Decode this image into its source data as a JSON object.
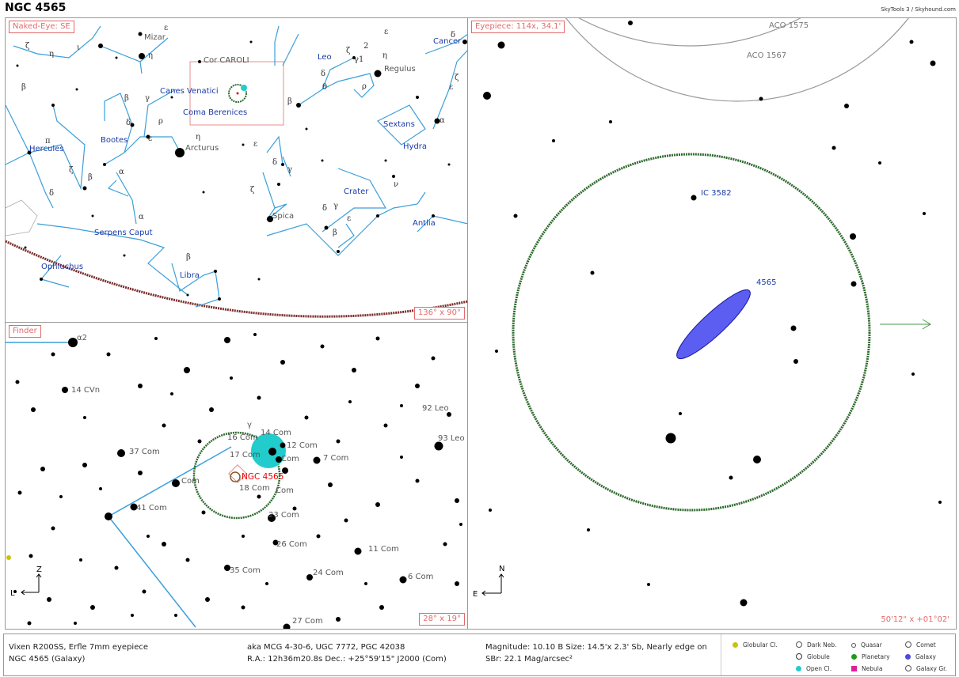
{
  "title": "NGC 4565",
  "credit": "SkyTools 3 / Skyhound.com",
  "naked_eye": {
    "tag": "Naked-Eye: SE",
    "fov": "136° x 90°",
    "constellations": [
      "Cancer",
      "Leo",
      "Sextans",
      "Hydra",
      "Crater",
      "Antlia",
      "Canes Venatici",
      "Coma Berenices",
      "Bootes",
      "Hercules",
      "Serpens Caput",
      "Ophiuchus",
      "Libra"
    ],
    "stars": [
      "Mizar",
      "Cor CAROLI",
      "Regulus",
      "Arcturus",
      "Spica"
    ]
  },
  "finder": {
    "tag": "Finder",
    "fov": "28° x 19°",
    "target": "NGC 4565",
    "labels": [
      "14 CVn",
      "37 Com",
      "41 Com",
      "35 Com",
      "26 Com",
      "23 Com",
      "24 Com",
      "27 Com",
      "11 Com",
      "6 Com",
      "7 Com",
      "92 Leo",
      "93 Leo",
      "18 Com",
      "17 Com",
      "16 Com",
      "12 Com",
      "14 Com",
      "Com",
      "Com",
      "Com"
    ],
    "compass_n": "Z",
    "compass_e": "L"
  },
  "eyepiece": {
    "tag": "Eyepiece: 114x, 34.1'",
    "fov": "50'12\" x +01°02'",
    "labels": [
      "ACO 1575",
      "ACO 1567",
      "IC 3582",
      "4565"
    ],
    "compass_n": "N",
    "compass_e": "E"
  },
  "footer": {
    "equipment": "Vixen R200SS, Erfle 7mm eyepiece",
    "object": "NGC 4565 (Galaxy)",
    "aka": "aka MCG 4-30-6, UGC 7772, PGC 42038",
    "position": "R.A.: 12h36m20.8s Dec.: +25°59'15\" J2000 (Com)",
    "magnitude": "Magnitude: 10.10 B Size: 14.5'x 2.3' Sb, Nearly edge on",
    "brightness": "SBr: 22.1 Mag/arcsec²"
  },
  "legend": [
    {
      "label": "Globular Cl.",
      "color": "#c9c400"
    },
    {
      "label": "Dark Neb.",
      "color": "#ffffff"
    },
    {
      "label": "Quasar",
      "color": "#ffffff"
    },
    {
      "label": "Comet",
      "color": "#ffffff"
    },
    {
      "label": "Globule",
      "color": "#ffffff"
    },
    {
      "label": "Planetary",
      "color": "#1c9a1c"
    },
    {
      "label": "Galaxy",
      "color": "#4a4ae0"
    },
    {
      "label": "Open Cl.",
      "color": "#22cccc"
    },
    {
      "label": "Nebula",
      "color": "#e0209a"
    },
    {
      "label": "Galaxy Gr.",
      "color": "#ffffff"
    }
  ],
  "colors": {
    "constellation": "#3b9fd8",
    "label_blue": "#1a3aa8",
    "accent_red": "#e46a6a",
    "galaxy": "#5b5ef0",
    "fov_ring": "#2d6a2d"
  }
}
